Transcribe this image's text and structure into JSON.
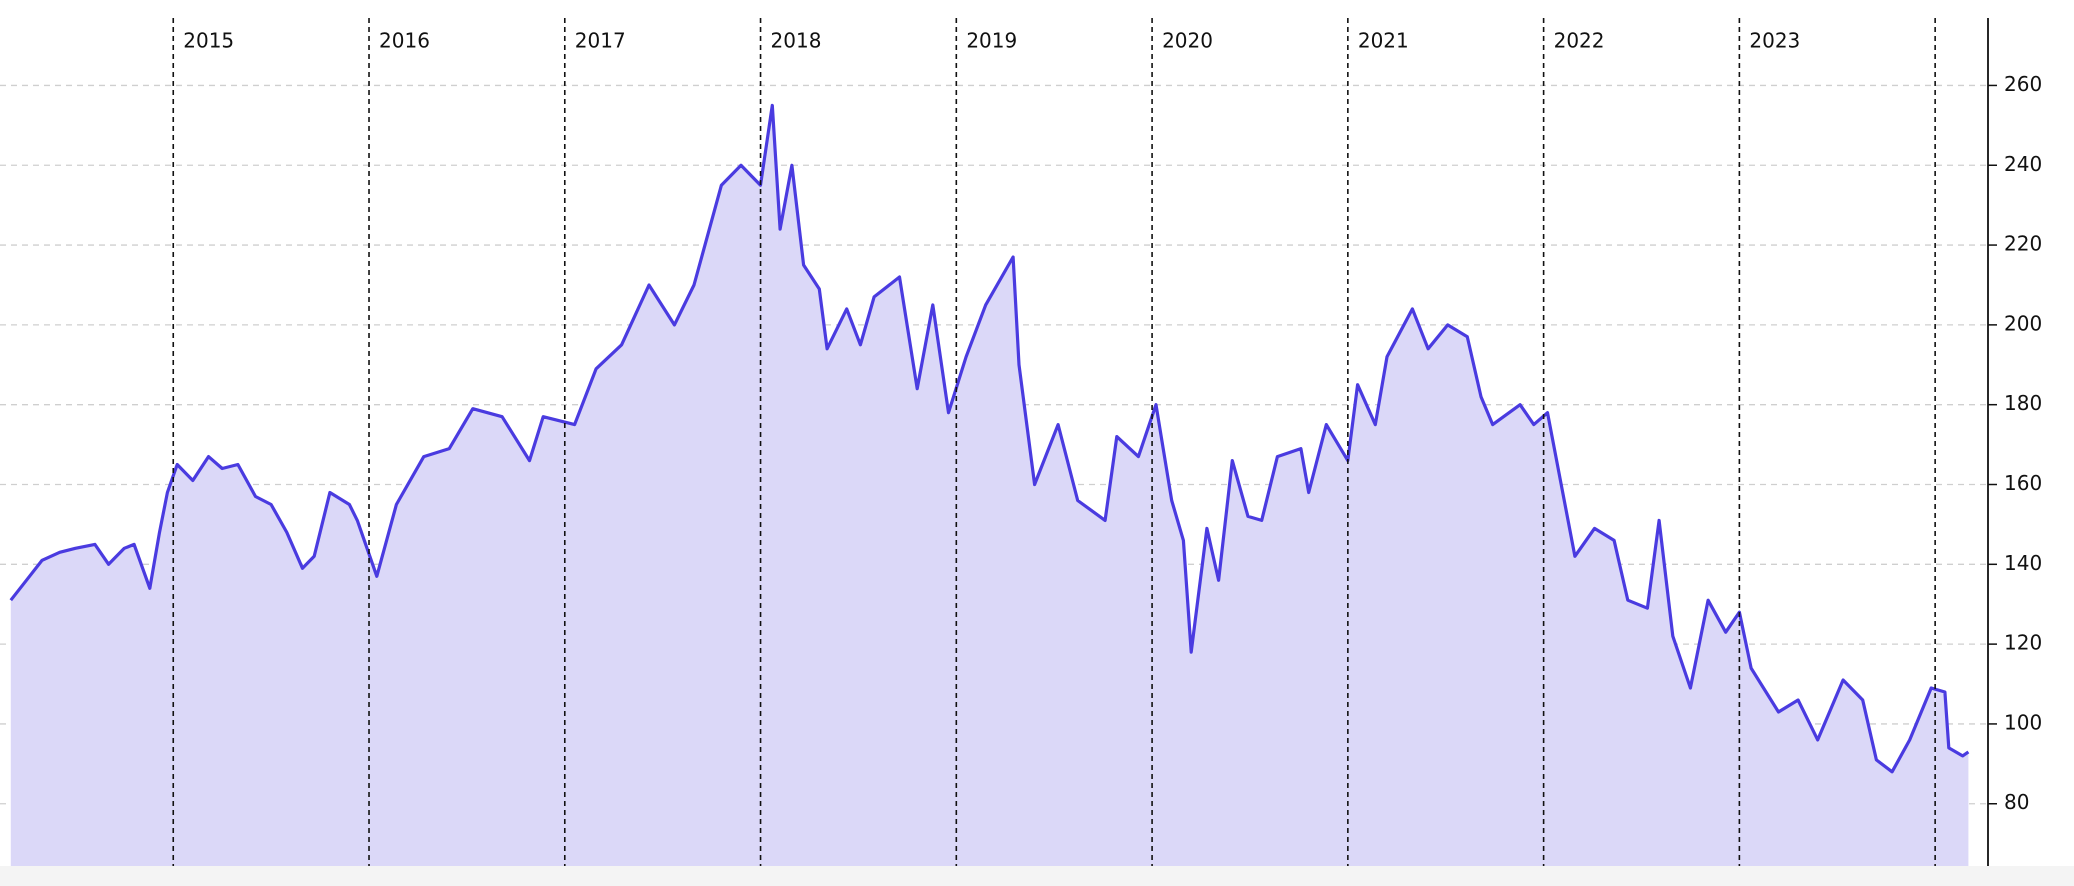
{
  "chart_data": {
    "type": "area",
    "xlim": [
      2014.115,
      2024.27
    ],
    "ylim": [
      64.4,
      276.9
    ],
    "xticks": [
      2015,
      2016,
      2017,
      2018,
      2019,
      2020,
      2021,
      2022,
      2023,
      {
        "value": 2024,
        "label": null
      }
    ],
    "yticks": [
      80,
      100,
      120,
      140,
      160,
      180,
      200,
      220,
      240,
      260
    ],
    "grid": true,
    "series": [
      {
        "color": "#4a3be0",
        "fill": "#dbd8f8",
        "x": [
          2014.17,
          2014.25,
          2014.33,
          2014.42,
          2014.5,
          2014.6,
          2014.67,
          2014.75,
          2014.8,
          2014.88,
          2014.93,
          2014.97,
          2015.02,
          2015.1,
          2015.18,
          2015.25,
          2015.33,
          2015.42,
          2015.5,
          2015.58,
          2015.66,
          2015.72,
          2015.8,
          2015.9,
          2015.94,
          2016.04,
          2016.14,
          2016.28,
          2016.41,
          2016.53,
          2016.68,
          2016.82,
          2016.89,
          2017.05,
          2017.16,
          2017.29,
          2017.43,
          2017.56,
          2017.66,
          2017.8,
          2017.9,
          2018.0,
          2018.06,
          2018.1,
          2018.16,
          2018.22,
          2018.3,
          2018.34,
          2018.44,
          2018.51,
          2018.58,
          2018.71,
          2018.8,
          2018.88,
          2018.96,
          2019.05,
          2019.15,
          2019.29,
          2019.32,
          2019.4,
          2019.52,
          2019.62,
          2019.76,
          2019.82,
          2019.93,
          2020.02,
          2020.1,
          2020.16,
          2020.2,
          2020.28,
          2020.34,
          2020.41,
          2020.49,
          2020.56,
          2020.64,
          2020.76,
          2020.8,
          2020.89,
          2021.0,
          2021.05,
          2021.14,
          2021.2,
          2021.33,
          2021.41,
          2021.51,
          2021.61,
          2021.68,
          2021.74,
          2021.88,
          2021.95,
          2022.02,
          2022.09,
          2022.16,
          2022.26,
          2022.36,
          2022.43,
          2022.53,
          2022.59,
          2022.66,
          2022.75,
          2022.84,
          2022.93,
          2023.0,
          2023.06,
          2023.2,
          2023.3,
          2023.4,
          2023.53,
          2023.63,
          2023.7,
          2023.78,
          2023.87,
          2023.98,
          2024.05,
          2024.07,
          2024.14,
          2024.17
        ],
        "values": [
          131,
          136,
          141,
          143,
          144,
          145,
          140,
          144,
          145,
          134,
          148,
          158,
          165,
          161,
          167,
          164,
          165,
          157,
          155,
          148,
          139,
          142,
          158,
          155,
          151,
          137,
          155,
          167,
          169,
          179,
          177,
          166,
          177,
          175,
          189,
          195,
          210,
          200,
          210,
          235,
          240,
          235,
          255,
          224,
          240,
          215,
          209,
          194,
          204,
          195,
          207,
          212,
          184,
          205,
          178,
          192,
          205,
          217,
          190,
          160,
          175,
          156,
          151,
          172,
          167,
          180,
          156,
          146,
          118,
          149,
          136,
          166,
          152,
          151,
          167,
          169,
          158,
          175,
          166,
          185,
          175,
          192,
          204,
          194,
          200,
          197,
          182,
          175,
          180,
          175,
          178,
          160,
          142,
          149,
          146,
          131,
          129,
          151,
          122,
          109,
          131,
          123,
          128,
          114,
          103,
          106,
          96,
          111,
          106,
          91,
          88,
          96,
          109,
          108,
          94,
          92,
          93
        ]
      }
    ]
  }
}
